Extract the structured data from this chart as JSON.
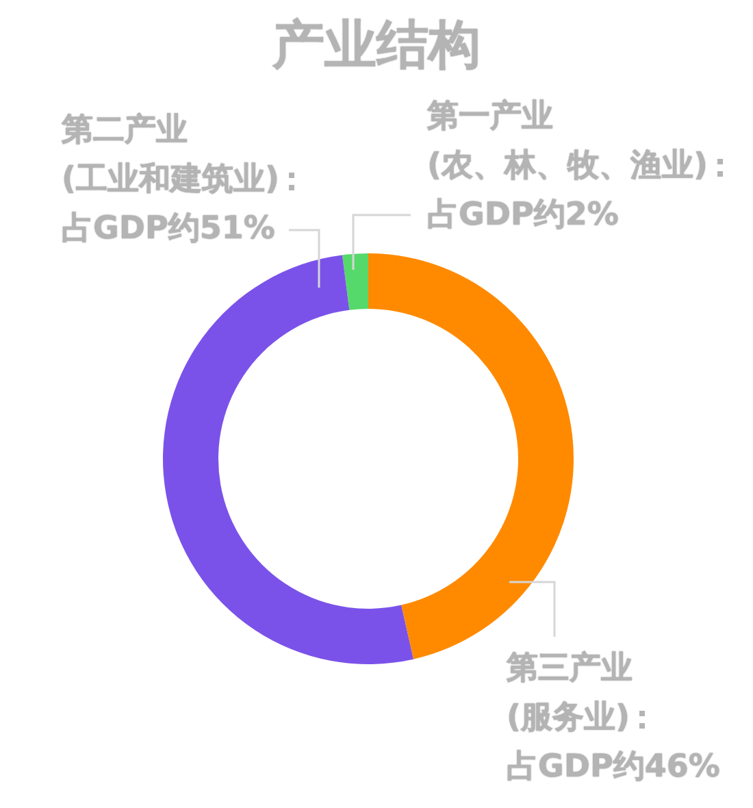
{
  "chart_data": {
    "type": "donut",
    "title": "产业结构",
    "categories": [
      "第一产业\n(农、林、牧、渔业)",
      "第二产业\n(工业和建筑业)",
      "第三产业\n(服务业)"
    ],
    "values": [
      2,
      51,
      46
    ],
    "colors": [
      "#56d96b",
      "#7b52e9",
      "#ff8a00"
    ],
    "value_labels": [
      "占GDP约2%",
      "占GDP约51%",
      "占GDP约46%"
    ],
    "legend": false
  }
}
